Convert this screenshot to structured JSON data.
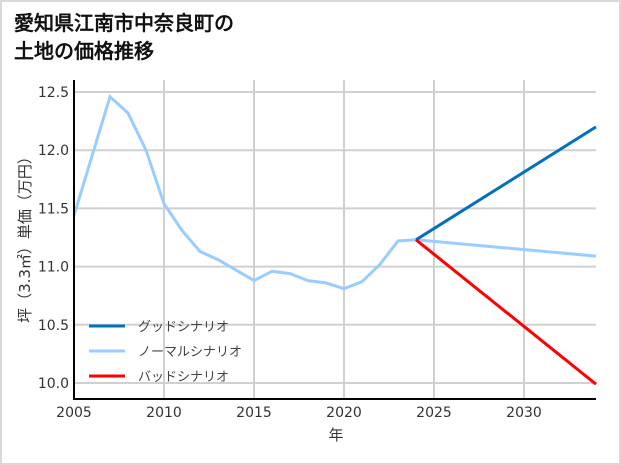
{
  "title": {
    "line1": "愛知県江南市中奈良町の",
    "line2": "土地の価格推移"
  },
  "chart_data": {
    "type": "line",
    "title": "愛知県江南市中奈良町の土地の価格推移",
    "xlabel": "年",
    "ylabel": "坪（3.3㎡）単価（万円）",
    "xlim": [
      2005,
      2034
    ],
    "ylim": [
      9.93,
      12.6
    ],
    "x_ticks": [
      2005,
      2010,
      2015,
      2020,
      2025,
      2030
    ],
    "x_tick_labels": [
      "2005",
      "2010",
      "2015",
      "2020",
      "2025",
      "2030"
    ],
    "y_ticks": [
      10.0,
      10.5,
      11.0,
      11.5,
      12.0,
      12.5
    ],
    "y_tick_labels": [
      "10.0",
      "10.5",
      "11.0",
      "11.5",
      "12.0",
      "12.5"
    ],
    "grid": true,
    "legend_position": "lower left",
    "series": [
      {
        "name": "グッドシナリオ",
        "color": "#0070c0",
        "x": [
          2024,
          2034
        ],
        "values": [
          11.23,
          12.2
        ]
      },
      {
        "name": "ノーマルシナリオ",
        "color": "#99ccff",
        "x": [
          2005,
          2007,
          2008,
          2009,
          2010,
          2011,
          2012,
          2013,
          2014,
          2015,
          2016,
          2017,
          2018,
          2019,
          2020,
          2021,
          2022,
          2023,
          2024,
          2034
        ],
        "values": [
          11.44,
          12.46,
          12.32,
          12.0,
          11.54,
          11.31,
          11.13,
          11.06,
          10.97,
          10.88,
          10.96,
          10.94,
          10.88,
          10.86,
          10.81,
          10.87,
          11.02,
          11.22,
          11.23,
          11.09
        ]
      },
      {
        "name": "バッドシナリオ",
        "color": "#ff0000",
        "x": [
          2024,
          2034
        ],
        "values": [
          11.23,
          9.99
        ]
      }
    ]
  },
  "colors": {
    "grid": "#d0d0d0",
    "axis": "#000000",
    "border": "#d9d9d9"
  }
}
